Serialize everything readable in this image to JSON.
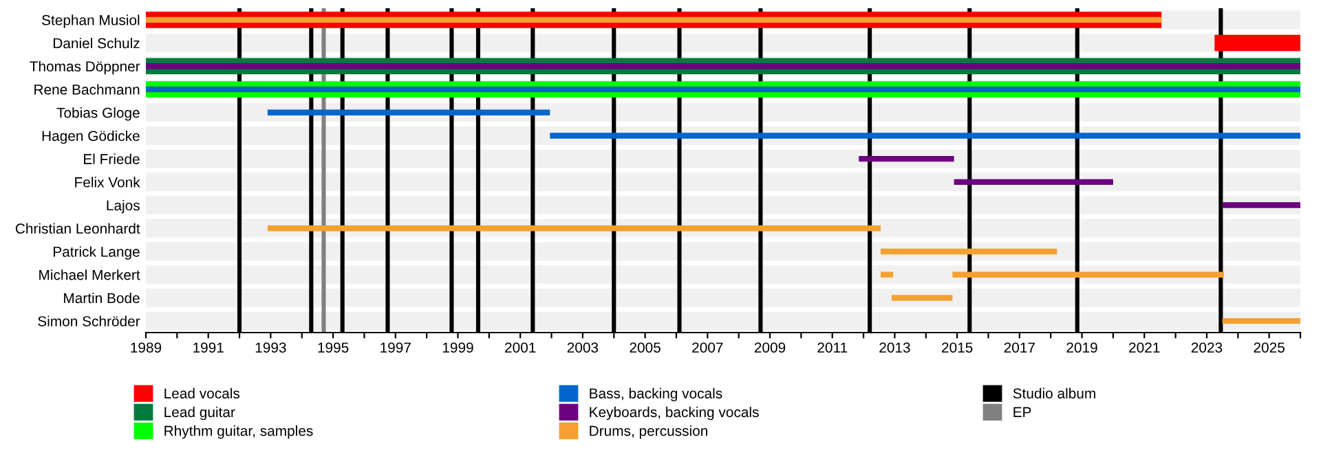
{
  "chart_data": {
    "type": "bar",
    "orientation": "horizontal",
    "categories": [
      "Stephan Musiol",
      "Daniel Schulz",
      "Thomas Döppner",
      "Rene Bachmann",
      "Tobias Gloge",
      "Hagen Gödicke",
      "El Friede",
      "Felix Vonk",
      "Lajos",
      "Christian Leonhardt",
      "Patrick Lange",
      "Michael Merkert",
      "Martin Bode",
      "Simon Schröder"
    ],
    "series": [
      {
        "name": "Lead vocals",
        "color": "#ff0000",
        "base": [
          1989,
          2023.25,
          null,
          null,
          null,
          null,
          null,
          null,
          null,
          null,
          null,
          null,
          null,
          null
        ],
        "values": [
          32.55,
          2.75,
          null,
          null,
          null,
          null,
          null,
          null,
          null,
          null,
          null,
          null,
          null,
          null
        ]
      },
      {
        "name": "Lead guitar",
        "color": "#007a3d",
        "base": [
          null,
          null,
          1989,
          null,
          null,
          null,
          null,
          null,
          null,
          null,
          null,
          null,
          null,
          null
        ],
        "values": [
          null,
          null,
          37,
          null,
          null,
          null,
          null,
          null,
          null,
          null,
          null,
          null,
          null,
          null
        ]
      },
      {
        "name": "Rhythm guitar, samples",
        "color": "#00ff00",
        "base": [
          null,
          null,
          null,
          1989,
          null,
          null,
          null,
          null,
          null,
          null,
          null,
          null,
          null,
          null
        ],
        "values": [
          null,
          null,
          null,
          37,
          null,
          null,
          null,
          null,
          null,
          null,
          null,
          null,
          null,
          null
        ]
      },
      {
        "name": "Bass, backing vocals",
        "color": "#0066cc",
        "base": [
          null,
          null,
          null,
          1989,
          1992.9,
          2001.95,
          null,
          null,
          null,
          null,
          null,
          null,
          null,
          null
        ],
        "values": [
          null,
          null,
          null,
          37,
          9.05,
          24.05,
          null,
          null,
          null,
          null,
          null,
          null,
          null,
          null
        ]
      },
      {
        "name": "Keyboards, backing vocals",
        "color": "#6b0080",
        "base": [
          null,
          null,
          1989,
          null,
          null,
          null,
          2011.85,
          2014.9,
          2023.5,
          null,
          null,
          null,
          null,
          null
        ],
        "values": [
          null,
          null,
          37,
          null,
          null,
          null,
          3.05,
          5.1,
          2.5,
          null,
          null,
          null,
          null,
          null
        ]
      },
      {
        "name": "Drums, percussion",
        "color": "#f5a030",
        "base": [
          1989,
          null,
          null,
          null,
          null,
          null,
          null,
          null,
          null,
          1992.9,
          2012.55,
          2012.55,
          2012.9,
          2023.5
        ],
        "values": [
          32.55,
          null,
          null,
          null,
          null,
          null,
          null,
          null,
          null,
          19.65,
          5.65,
          0.4,
          1.95,
          2.5
        ]
      },
      {
        "color": "#f5a030",
        "base": [
          null,
          null,
          null,
          null,
          null,
          null,
          null,
          null,
          null,
          null,
          null,
          2014.85,
          null,
          null
        ],
        "values": [
          null,
          null,
          null,
          null,
          null,
          null,
          null,
          null,
          null,
          null,
          null,
          8.7,
          null,
          null
        ]
      }
    ],
    "xlim": [
      1989,
      2026
    ],
    "xticks": [
      {
        "value": 1989,
        "label": "1989"
      },
      {
        "value": 1990,
        "label": null
      },
      {
        "value": 1991,
        "label": "1991"
      },
      {
        "value": 1992,
        "label": null
      },
      {
        "value": 1993,
        "label": "1993"
      },
      {
        "value": 1994,
        "label": null
      },
      {
        "value": 1995,
        "label": "1995"
      },
      {
        "value": 1996,
        "label": null
      },
      {
        "value": 1997,
        "label": "1997"
      },
      {
        "value": 1998,
        "label": null
      },
      {
        "value": 1999,
        "label": "1999"
      },
      {
        "value": 2000,
        "label": null
      },
      {
        "value": 2001,
        "label": "2001"
      },
      {
        "value": 2002,
        "label": null
      },
      {
        "value": 2003,
        "label": "2003"
      },
      {
        "value": 2004,
        "label": null
      },
      {
        "value": 2005,
        "label": "2005"
      },
      {
        "value": 2006,
        "label": null
      },
      {
        "value": 2007,
        "label": "2007"
      },
      {
        "value": 2008,
        "label": null
      },
      {
        "value": 2009,
        "label": "2009"
      },
      {
        "value": 2010,
        "label": null
      },
      {
        "value": 2011,
        "label": "2011"
      },
      {
        "value": 2012,
        "label": null
      },
      {
        "value": 2013,
        "label": "2013"
      },
      {
        "value": 2014,
        "label": null
      },
      {
        "value": 2015,
        "label": "2015"
      },
      {
        "value": 2016,
        "label": null
      },
      {
        "value": 2017,
        "label": "2017"
      },
      {
        "value": 2018,
        "label": null
      },
      {
        "value": 2019,
        "label": "2019"
      },
      {
        "value": 2020,
        "label": null
      },
      {
        "value": 2021,
        "label": "2021"
      },
      {
        "value": 2022,
        "label": null
      },
      {
        "value": 2023,
        "label": "2023"
      },
      {
        "value": 2024,
        "label": null
      },
      {
        "value": 2025,
        "label": "2025"
      },
      {
        "value": 2026,
        "label": null
      }
    ],
    "ref_lines": [
      {
        "axis": "x",
        "value": 1992.0,
        "label": "Studio album",
        "color": "#000000"
      },
      {
        "axis": "x",
        "value": 1994.3,
        "color": "#000000"
      },
      {
        "axis": "x",
        "value": 1994.7,
        "label": "EP",
        "color": "#808080"
      },
      {
        "axis": "x",
        "value": 1995.3,
        "color": "#000000"
      },
      {
        "axis": "x",
        "value": 1996.75,
        "color": "#000000"
      },
      {
        "axis": "x",
        "value": 1998.8,
        "color": "#000000"
      },
      {
        "axis": "x",
        "value": 1999.65,
        "color": "#000000"
      },
      {
        "axis": "x",
        "value": 2001.4,
        "color": "#000000"
      },
      {
        "axis": "x",
        "value": 2004.0,
        "color": "#000000"
      },
      {
        "axis": "x",
        "value": 2006.1,
        "color": "#000000"
      },
      {
        "axis": "x",
        "value": 2008.7,
        "color": "#000000"
      },
      {
        "axis": "x",
        "value": 2012.2,
        "color": "#000000"
      },
      {
        "axis": "x",
        "value": 2015.4,
        "color": "#000000"
      },
      {
        "axis": "x",
        "value": 2018.85,
        "color": "#000000"
      },
      {
        "axis": "x",
        "value": 2023.45,
        "color": "#000000"
      }
    ],
    "legend": "bottom",
    "grid": false
  }
}
